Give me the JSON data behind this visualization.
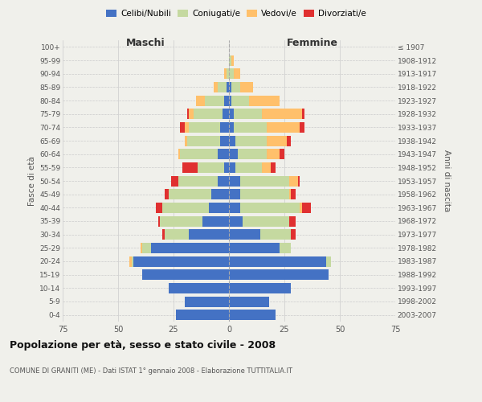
{
  "age_groups": [
    "0-4",
    "5-9",
    "10-14",
    "15-19",
    "20-24",
    "25-29",
    "30-34",
    "35-39",
    "40-44",
    "45-49",
    "50-54",
    "55-59",
    "60-64",
    "65-69",
    "70-74",
    "75-79",
    "80-84",
    "85-89",
    "90-94",
    "95-99",
    "100+"
  ],
  "birth_years": [
    "2003-2007",
    "1998-2002",
    "1993-1997",
    "1988-1992",
    "1983-1987",
    "1978-1982",
    "1973-1977",
    "1968-1972",
    "1963-1967",
    "1958-1962",
    "1953-1957",
    "1948-1952",
    "1943-1947",
    "1938-1942",
    "1933-1937",
    "1928-1932",
    "1923-1927",
    "1918-1922",
    "1913-1917",
    "1908-1912",
    "≤ 1907"
  ],
  "maschi": {
    "celibi": [
      24,
      20,
      27,
      39,
      43,
      35,
      18,
      12,
      9,
      8,
      5,
      2,
      5,
      4,
      4,
      3,
      2,
      1,
      0,
      0,
      0
    ],
    "coniugati": [
      0,
      0,
      0,
      0,
      1,
      4,
      11,
      19,
      21,
      19,
      18,
      12,
      17,
      15,
      14,
      13,
      9,
      4,
      1,
      0,
      0
    ],
    "vedovi": [
      0,
      0,
      0,
      0,
      1,
      1,
      0,
      0,
      0,
      0,
      0,
      0,
      1,
      1,
      2,
      2,
      4,
      2,
      1,
      0,
      0
    ],
    "divorziati": [
      0,
      0,
      0,
      0,
      0,
      0,
      1,
      1,
      3,
      2,
      3,
      7,
      0,
      0,
      2,
      1,
      0,
      0,
      0,
      0,
      0
    ]
  },
  "femmine": {
    "nubili": [
      21,
      18,
      28,
      45,
      44,
      23,
      14,
      6,
      5,
      5,
      5,
      3,
      4,
      3,
      2,
      2,
      1,
      1,
      0,
      0,
      0
    ],
    "coniugate": [
      0,
      0,
      0,
      0,
      2,
      5,
      14,
      21,
      27,
      22,
      22,
      12,
      13,
      14,
      15,
      13,
      8,
      4,
      2,
      1,
      0
    ],
    "vedove": [
      0,
      0,
      0,
      0,
      0,
      0,
      0,
      0,
      1,
      1,
      4,
      4,
      6,
      9,
      15,
      18,
      14,
      6,
      3,
      1,
      0
    ],
    "divorziate": [
      0,
      0,
      0,
      0,
      0,
      0,
      2,
      3,
      4,
      2,
      1,
      2,
      2,
      2,
      2,
      1,
      0,
      0,
      0,
      0,
      0
    ]
  },
  "colors": {
    "celibi_nubili": "#4472c4",
    "coniugati": "#c5d9a0",
    "vedovi": "#ffc06b",
    "divorziati": "#e03030"
  },
  "xlim": 75,
  "title": "Popolazione per età, sesso e stato civile - 2008",
  "subtitle": "COMUNE DI GRANITI (ME) - Dati ISTAT 1° gennaio 2008 - Elaborazione TUTTITALIA.IT",
  "ylabel_left": "Fasce di età",
  "ylabel_right": "Anni di nascita",
  "xlabel_left": "Maschi",
  "xlabel_right": "Femmine",
  "bg_color": "#f0f0eb",
  "grid_color": "#cccccc"
}
